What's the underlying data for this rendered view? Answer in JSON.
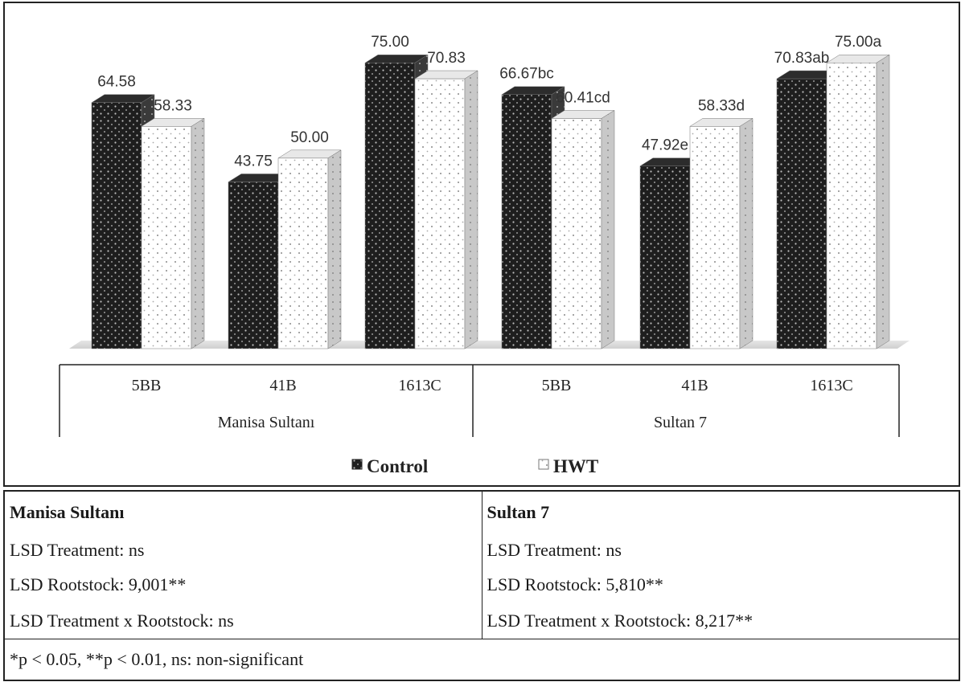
{
  "chart_data": {
    "type": "bar",
    "groups": [
      "Manisa Sultanı",
      "Sultan 7"
    ],
    "categories": [
      "5BB",
      "41B",
      "1613C",
      "5BB",
      "41B",
      "1613C"
    ],
    "series": [
      {
        "name": "Control",
        "values": [
          64.58,
          43.75,
          75.0,
          66.67,
          47.92,
          70.83
        ],
        "labels": [
          "64.58",
          "43.75",
          "75.00",
          "66.67bc",
          "47.92e",
          "70.83ab"
        ]
      },
      {
        "name": "HWT",
        "values": [
          58.33,
          50.0,
          70.83,
          60.41,
          58.33,
          75.0
        ],
        "labels": [
          "58.33",
          "50.00",
          "70.83",
          "60.41cd",
          "58.33d",
          "75.00a"
        ]
      }
    ],
    "ylim": [
      0,
      78
    ],
    "colors": {
      "Control": "#1e1e1e",
      "HWT": "#ffffff"
    },
    "legend": "bottom"
  },
  "table": {
    "left_title": "Manisa Sultanı",
    "right_title": "Sultan 7",
    "left_rows": [
      "LSD Treatment: ns",
      "LSD  Rootstock: 9,001**",
      "LSD  Treatment x Rootstock: ns"
    ],
    "right_rows": [
      "LSD  Treatment: ns",
      "LSD  Rootstock: 5,810**",
      "LSD  Treatment x Rootstock: 8,217**"
    ],
    "footnote": "*p < 0.05, **p < 0.01, ns: non-significant"
  }
}
